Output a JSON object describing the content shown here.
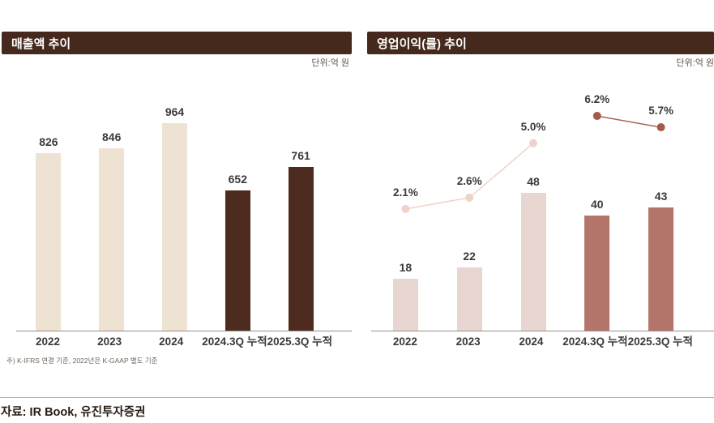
{
  "footer": {
    "source": "자료: IR Book, 유진투자증권"
  },
  "chart_data": [
    {
      "type": "bar",
      "title": "매출액 추이",
      "unit_label": "단위:억 원",
      "footnote": "주) K-IFRS 연결 기준, 2022년은 K-GAAP 별도 기준",
      "categories": [
        "2022",
        "2023",
        "2024",
        "2024.3Q 누적",
        "2025.3Q 누적"
      ],
      "values": [
        826,
        846,
        964,
        652,
        761
      ],
      "value_labels": [
        "826",
        "846",
        "964",
        "652",
        "761"
      ],
      "bar_colors": [
        "#eee3d2",
        "#eee3d2",
        "#eee3d2",
        "#4d2b1e",
        "#4d2b1e"
      ],
      "ylim": [
        0,
        1175
      ],
      "xlabel": "",
      "ylabel": "억 원",
      "grid": false,
      "legend": "none"
    },
    {
      "type": "bar+line",
      "title": "영업이익(률) 추이",
      "unit_label": "단위:억 원",
      "categories": [
        "2022",
        "2023",
        "2024",
        "2024.3Q 누적",
        "2025.3Q 누적"
      ],
      "series": [
        {
          "name": "영업이익(억 원)",
          "type": "bar",
          "values": [
            18,
            22,
            48,
            40,
            43
          ],
          "value_labels": [
            "18",
            "22",
            "48",
            "40",
            "43"
          ],
          "colors": [
            "#e7d7d0",
            "#e7d7d0",
            "#e7d7d0",
            "#b37569",
            "#b37569"
          ],
          "ylim": [
            0,
            88
          ]
        },
        {
          "name": "영업이익률(%)",
          "type": "line",
          "values": [
            2.1,
            2.6,
            5.0,
            6.2,
            5.7
          ],
          "value_labels": [
            "2.1%",
            "2.6%",
            "5.0%",
            "6.2%",
            "5.7%"
          ],
          "segments": [
            [
              0,
              1,
              2
            ],
            [
              3,
              4
            ]
          ],
          "segment_colors": [
            "#eed3ca",
            "#ad6250"
          ],
          "point_colors": [
            "#eed3ca",
            "#eed3ca",
            "#eed3ca",
            "#a55a49",
            "#a55a49"
          ],
          "ylim": [
            -3.26,
            7.88
          ]
        }
      ],
      "grid": false,
      "legend": "none"
    }
  ]
}
